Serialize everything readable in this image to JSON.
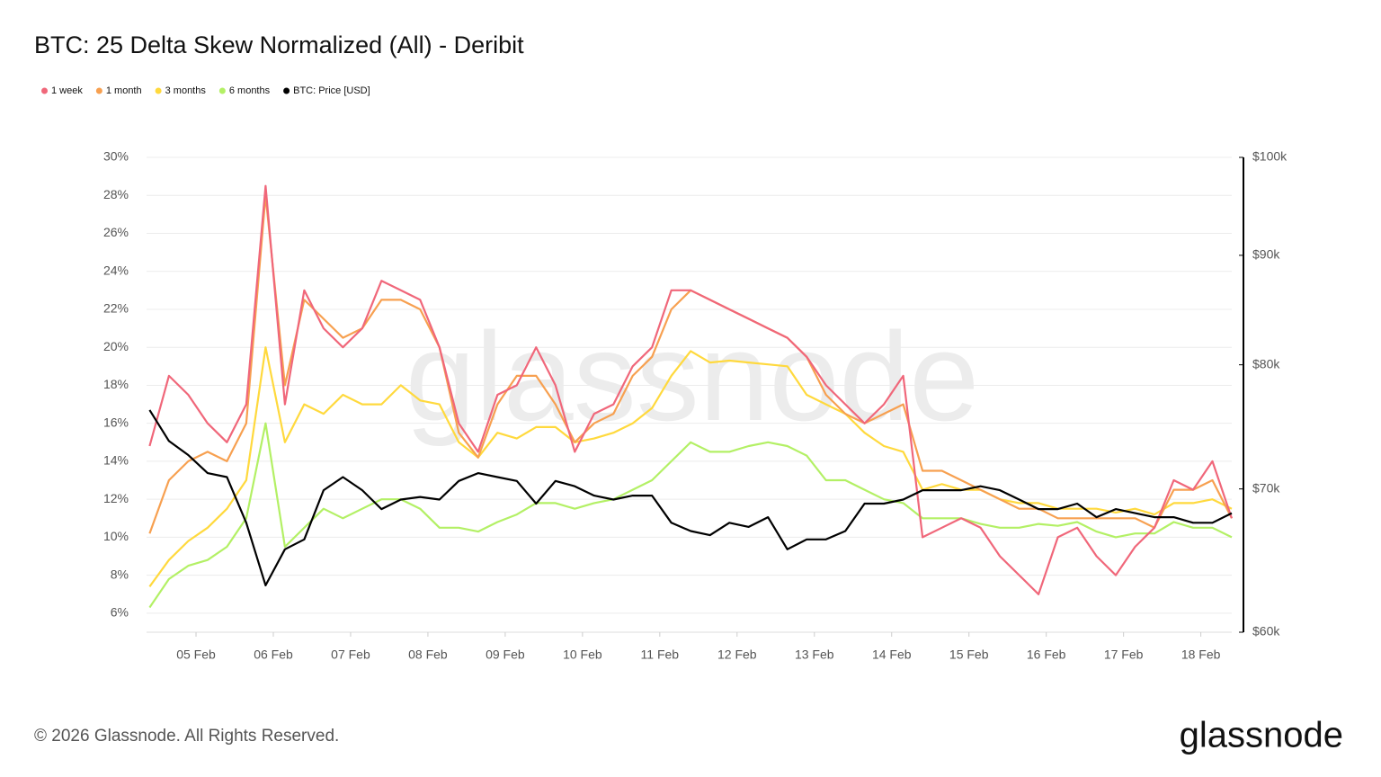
{
  "chart_data": {
    "type": "line",
    "title": "BTC: 25 Delta Skew Normalized (All) - Deribit",
    "watermark": "glassnode",
    "footer": "© 2026 Glassnode. All Rights Reserved.",
    "logo": "glassnode",
    "legend": "top-left",
    "grid": true,
    "x": [
      4.4,
      4.65,
      4.9,
      5.15,
      5.4,
      5.65,
      5.9,
      6.15,
      6.4,
      6.65,
      6.9,
      7.15,
      7.4,
      7.65,
      7.9,
      8.15,
      8.4,
      8.65,
      8.9,
      9.15,
      9.4,
      9.65,
      9.9,
      10.15,
      10.4,
      10.65,
      10.9,
      11.15,
      11.4,
      11.65,
      11.9,
      12.15,
      12.4,
      12.65,
      12.9,
      13.15,
      13.4,
      13.65,
      13.9,
      14.15,
      14.4,
      14.65,
      14.9,
      15.15,
      15.4,
      15.65,
      15.9,
      16.15,
      16.4,
      16.65,
      16.9,
      17.15,
      17.4,
      17.65,
      17.9,
      18.15,
      18.4
    ],
    "xlim": [
      4.36,
      18.4
    ],
    "xticks": [
      {
        "value": 5,
        "label": "05 Feb"
      },
      {
        "value": 6,
        "label": "06 Feb"
      },
      {
        "value": 7,
        "label": "07 Feb"
      },
      {
        "value": 8,
        "label": "08 Feb"
      },
      {
        "value": 9,
        "label": "09 Feb"
      },
      {
        "value": 10,
        "label": "10 Feb"
      },
      {
        "value": 11,
        "label": "11 Feb"
      },
      {
        "value": 12,
        "label": "12 Feb"
      },
      {
        "value": 13,
        "label": "13 Feb"
      },
      {
        "value": 14,
        "label": "14 Feb"
      },
      {
        "value": 15,
        "label": "15 Feb"
      },
      {
        "value": 16,
        "label": "16 Feb"
      },
      {
        "value": 17,
        "label": "17 Feb"
      },
      {
        "value": 18,
        "label": "18 Feb"
      }
    ],
    "ylim": [
      5,
      30
    ],
    "yticks": [
      {
        "value": 6,
        "label": "6%"
      },
      {
        "value": 8,
        "label": "8%"
      },
      {
        "value": 10,
        "label": "10%"
      },
      {
        "value": 12,
        "label": "12%"
      },
      {
        "value": 14,
        "label": "14%"
      },
      {
        "value": 16,
        "label": "16%"
      },
      {
        "value": 18,
        "label": "18%"
      },
      {
        "value": 20,
        "label": "20%"
      },
      {
        "value": 22,
        "label": "22%"
      },
      {
        "value": 24,
        "label": "24%"
      },
      {
        "value": 26,
        "label": "26%"
      },
      {
        "value": 28,
        "label": "28%"
      },
      {
        "value": 30,
        "label": "30%"
      }
    ],
    "y2lim": [
      60000,
      100000
    ],
    "y2log": true,
    "y2ticks": [
      {
        "value": 60000,
        "label": "$60k"
      },
      {
        "value": 70000,
        "label": "$70k"
      },
      {
        "value": 80000,
        "label": "$80k"
      },
      {
        "value": 90000,
        "label": "$90k"
      },
      {
        "value": 100000,
        "label": "$100k"
      }
    ],
    "series": [
      {
        "name": "1 week",
        "color": "#f0677a",
        "values": [
          14.8,
          18.5,
          17.5,
          16,
          15,
          17,
          28.5,
          17,
          23,
          21,
          20,
          21,
          23.5,
          23,
          22.5,
          20,
          16,
          14.5,
          17.5,
          18,
          20,
          18,
          14.5,
          16.5,
          17,
          19,
          20,
          23,
          23,
          22.5,
          22,
          21.5,
          21,
          20.5,
          19.5,
          18,
          17,
          16,
          17,
          18.5,
          10,
          10.5,
          11,
          10.5,
          9,
          8,
          7,
          10,
          10.5,
          9,
          8,
          9.5,
          10.5,
          13,
          12.5,
          14,
          11
        ]
      },
      {
        "name": "1 month",
        "color": "#f7a050",
        "values": [
          10.2,
          13,
          14,
          14.5,
          14,
          16,
          28,
          18,
          22.5,
          21.5,
          20.5,
          21,
          22.5,
          22.5,
          22,
          20,
          15.5,
          14.2,
          17,
          18.5,
          18.5,
          17,
          15,
          16,
          16.5,
          18.5,
          19.5,
          22,
          23,
          22.5,
          22,
          21.5,
          21,
          20.5,
          19.5,
          17.5,
          16.5,
          16,
          16.5,
          17,
          13.5,
          13.5,
          13,
          12.5,
          12,
          11.5,
          11.5,
          11,
          11,
          11,
          11,
          11,
          10.5,
          12.5,
          12.5,
          13,
          11
        ]
      },
      {
        "name": "3 months",
        "color": "#ffd93d",
        "values": [
          7.4,
          8.8,
          9.8,
          10.5,
          11.5,
          13,
          20,
          15,
          17,
          16.5,
          17.5,
          17,
          17,
          18,
          17.2,
          17,
          15,
          14.2,
          15.5,
          15.2,
          15.8,
          15.8,
          15,
          15.2,
          15.5,
          16,
          16.8,
          18.5,
          19.8,
          19.2,
          19.3,
          19.2,
          19.1,
          19,
          17.5,
          17,
          16.5,
          15.5,
          14.8,
          14.5,
          12.5,
          12.8,
          12.5,
          12.5,
          12,
          11.8,
          11.8,
          11.5,
          11.5,
          11.5,
          11.3,
          11.5,
          11.2,
          11.8,
          11.8,
          12,
          11.5
        ]
      },
      {
        "name": "6 months",
        "color": "#b3f065",
        "values": [
          6.3,
          7.8,
          8.5,
          8.8,
          9.5,
          11,
          16,
          9.5,
          10.5,
          11.5,
          11,
          11.5,
          12,
          12,
          11.5,
          10.5,
          10.5,
          10.3,
          10.8,
          11.2,
          11.8,
          11.8,
          11.5,
          11.8,
          12,
          12.5,
          13,
          14,
          15,
          14.5,
          14.5,
          14.8,
          15,
          14.8,
          14.3,
          13,
          13,
          12.5,
          12,
          11.8,
          11,
          11,
          11,
          10.7,
          10.5,
          10.5,
          10.7,
          10.6,
          10.8,
          10.3,
          10,
          10.2,
          10.2,
          10.8,
          10.5,
          10.5,
          10
        ]
      },
      {
        "name": "BTC: Price [USD]",
        "color": "#000000",
        "axis": "y2",
        "values": [
          76200,
          73700,
          72600,
          71200,
          70900,
          67500,
          63100,
          65600,
          66300,
          69900,
          70900,
          69900,
          68500,
          69200,
          69400,
          69200,
          70600,
          71200,
          70900,
          70600,
          68900,
          70600,
          70200,
          69500,
          69200,
          69500,
          69500,
          67500,
          66900,
          66600,
          67500,
          67200,
          67900,
          65600,
          66300,
          66300,
          66900,
          68900,
          68900,
          69200,
          69900,
          69900,
          69900,
          70200,
          69900,
          69200,
          68500,
          68500,
          68900,
          67900,
          68500,
          68200,
          67900,
          67900,
          67500,
          67500,
          68200
        ]
      }
    ]
  }
}
